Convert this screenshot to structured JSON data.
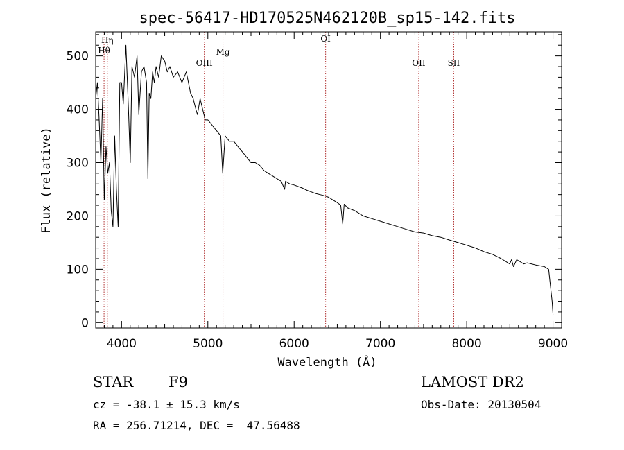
{
  "chart_data": {
    "type": "line",
    "title": "spec-56417-HD170525N462120B_sp15-142.fits",
    "xlabel": "Wavelength (Å)",
    "ylabel": "Flux (relative)",
    "xlim": [
      3700,
      9100
    ],
    "ylim": [
      -10,
      545
    ],
    "xticks": [
      4000,
      5000,
      6000,
      7000,
      8000,
      9000
    ],
    "yticks": [
      0,
      100,
      200,
      300,
      400,
      500
    ],
    "grid": false,
    "series": [
      {
        "x": [
          3700,
          3720,
          3740,
          3760,
          3780,
          3800,
          3820,
          3840,
          3860,
          3880,
          3900,
          3920,
          3940,
          3960,
          3980,
          4000,
          4020,
          4050,
          4080,
          4101,
          4120,
          4150,
          4180,
          4200,
          4230,
          4260,
          4290,
          4305,
          4320,
          4340,
          4360,
          4380,
          4400,
          4430,
          4460,
          4500,
          4530,
          4560,
          4600,
          4650,
          4700,
          4750,
          4800,
          4830,
          4861,
          4880,
          4910,
          4940,
          4970,
          5000,
          5050,
          5100,
          5150,
          5172,
          5200,
          5250,
          5300,
          5350,
          5400,
          5450,
          5500,
          5550,
          5600,
          5650,
          5700,
          5750,
          5800,
          5850,
          5890,
          5900,
          5950,
          6000,
          6050,
          6100,
          6150,
          6200,
          6250,
          6300,
          6350,
          6400,
          6450,
          6500,
          6540,
          6563,
          6580,
          6620,
          6700,
          6800,
          6900,
          7000,
          7100,
          7200,
          7300,
          7400,
          7500,
          7600,
          7700,
          7800,
          7900,
          8000,
          8100,
          8200,
          8300,
          8400,
          8498,
          8520,
          8542,
          8580,
          8662,
          8700,
          8800,
          8900,
          8950,
          8990,
          9000
        ],
        "y": [
          420,
          450,
          380,
          300,
          420,
          230,
          330,
          280,
          300,
          210,
          180,
          350,
          250,
          180,
          450,
          450,
          410,
          520,
          400,
          300,
          480,
          460,
          500,
          390,
          470,
          480,
          450,
          270,
          430,
          420,
          470,
          450,
          480,
          460,
          500,
          490,
          470,
          480,
          460,
          470,
          450,
          470,
          430,
          420,
          400,
          390,
          420,
          400,
          380,
          380,
          370,
          360,
          350,
          280,
          350,
          340,
          340,
          330,
          320,
          310,
          300,
          300,
          295,
          285,
          280,
          275,
          270,
          265,
          250,
          265,
          260,
          258,
          255,
          252,
          248,
          245,
          242,
          240,
          238,
          235,
          230,
          225,
          220,
          185,
          222,
          215,
          210,
          200,
          195,
          190,
          185,
          180,
          175,
          170,
          168,
          163,
          160,
          155,
          150,
          145,
          140,
          133,
          128,
          120,
          110,
          118,
          105,
          118,
          110,
          112,
          108,
          105,
          100,
          40,
          15
        ]
      }
    ],
    "lines": [
      {
        "label": "Hη",
        "x": 3835
      },
      {
        "label": "Hθ",
        "x": 3797
      },
      {
        "label": "OIII",
        "x": 4959
      },
      {
        "label": "Mg",
        "x": 5175
      },
      {
        "label": "OI",
        "x": 6365
      },
      {
        "label": "OII",
        "x": 7444
      },
      {
        "label": "SII",
        "x": 7850
      }
    ],
    "line_color": "#b03030"
  },
  "info": {
    "class": "STAR",
    "subclass": "F9",
    "survey": "LAMOST DR2",
    "cz": "cz = -38.1 ± 15.3 km/s",
    "obs_date": "Obs-Date: 20130504",
    "coords": "RA = 256.71214, DEC =  47.56488"
  }
}
